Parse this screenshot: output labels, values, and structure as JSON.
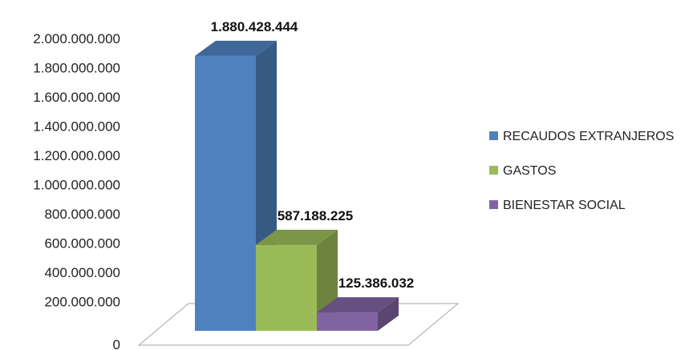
{
  "chart_data": {
    "type": "bar",
    "style": "3d-column",
    "categories": [
      "RECAUDOS EXTRANJEROS",
      "GASTOS",
      "BIENESTAR SOCIAL"
    ],
    "series": [
      {
        "name": "RECAUDOS EXTRANJEROS",
        "value": 1880428444,
        "label": "1.880.428.444",
        "color": "#4f81bd"
      },
      {
        "name": "GASTOS",
        "value": 587188225,
        "label": "587.188.225",
        "color": "#9bbb59"
      },
      {
        "name": "BIENESTAR SOCIAL",
        "value": 125386032,
        "label": "125.386.032",
        "color": "#8064a2"
      }
    ],
    "ylim": [
      0,
      2000000000
    ],
    "yticks": [
      {
        "value": 0,
        "label": "0"
      },
      {
        "value": 200000000,
        "label": "200.000.000"
      },
      {
        "value": 400000000,
        "label": "400.000.000"
      },
      {
        "value": 600000000,
        "label": "600.000.000"
      },
      {
        "value": 800000000,
        "label": "800.000.000"
      },
      {
        "value": 1000000000,
        "label": "1.000.000.000"
      },
      {
        "value": 1200000000,
        "label": "1.200.000.000"
      },
      {
        "value": 1400000000,
        "label": "1.400.000.000"
      },
      {
        "value": 1600000000,
        "label": "1.600.000.000"
      },
      {
        "value": 1800000000,
        "label": "1.800.000.000"
      },
      {
        "value": 2000000000,
        "label": "2.000.000.000"
      }
    ],
    "legend": "right",
    "grid": false
  }
}
